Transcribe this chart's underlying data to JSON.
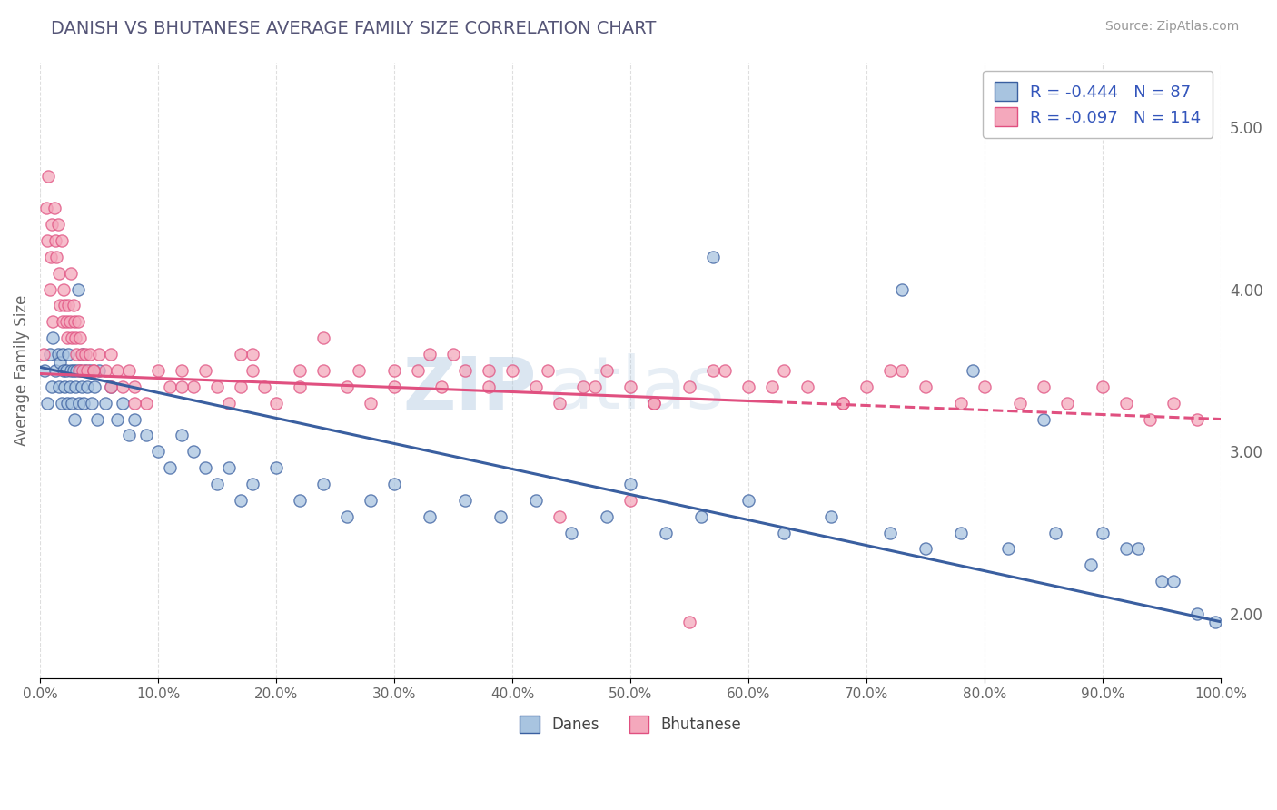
{
  "title": "DANISH VS BHUTANESE AVERAGE FAMILY SIZE CORRELATION CHART",
  "source": "Source: ZipAtlas.com",
  "ylabel": "Average Family Size",
  "legend_labels": [
    "Danes",
    "Bhutanese"
  ],
  "legend_R": [
    "-0.444",
    "-0.097"
  ],
  "legend_N": [
    "87",
    "114"
  ],
  "dane_color": "#a8c4e0",
  "bhutanese_color": "#f4a8bc",
  "dane_line_color": "#3a5fa0",
  "bhutanese_line_color": "#e05080",
  "background_color": "#ffffff",
  "grid_color": "#c8c8c8",
  "title_color": "#555577",
  "yticks_right": [
    2.0,
    3.0,
    4.0,
    5.0
  ],
  "ytick_labels_right": [
    "2.00",
    "3.00",
    "4.00",
    "5.00"
  ],
  "dane_line_x0": 0,
  "dane_line_x1": 100,
  "dane_line_y0": 3.52,
  "dane_line_y1": 1.95,
  "bhutanese_line_x0": 0,
  "bhutanese_line_x1": 100,
  "bhutanese_line_y0": 3.48,
  "bhutanese_line_y1": 3.2,
  "bhutanese_solid_end": 62,
  "watermark_zip": "ZIP",
  "watermark_atlas": "atlas",
  "xlim": [
    0,
    100
  ],
  "ylim": [
    1.6,
    5.4
  ],
  "dane_scatter_x": [
    0.4,
    0.6,
    0.8,
    1.0,
    1.1,
    1.3,
    1.5,
    1.6,
    1.7,
    1.8,
    1.9,
    2.0,
    2.1,
    2.2,
    2.3,
    2.4,
    2.5,
    2.6,
    2.7,
    2.8,
    2.9,
    3.0,
    3.1,
    3.2,
    3.3,
    3.4,
    3.5,
    3.6,
    3.7,
    3.8,
    4.0,
    4.2,
    4.4,
    4.6,
    4.8,
    5.0,
    5.5,
    6.0,
    6.5,
    7.0,
    7.5,
    8.0,
    9.0,
    10.0,
    11.0,
    12.0,
    13.0,
    14.0,
    15.0,
    16.0,
    17.0,
    18.0,
    20.0,
    22.0,
    24.0,
    26.0,
    28.0,
    30.0,
    33.0,
    36.0,
    39.0,
    42.0,
    45.0,
    48.0,
    50.0,
    53.0,
    56.0,
    60.0,
    63.0,
    67.0,
    72.0,
    75.0,
    78.0,
    82.0,
    86.0,
    89.0,
    92.0,
    95.0,
    98.0,
    99.5,
    57.0,
    73.0,
    79.0,
    85.0,
    90.0,
    93.0,
    96.0
  ],
  "dane_scatter_y": [
    3.5,
    3.3,
    3.6,
    3.4,
    3.7,
    3.5,
    3.6,
    3.4,
    3.55,
    3.3,
    3.6,
    3.5,
    3.4,
    3.5,
    3.3,
    3.6,
    3.4,
    3.5,
    3.3,
    3.5,
    3.2,
    3.4,
    3.5,
    4.0,
    3.3,
    3.5,
    3.4,
    3.6,
    3.3,
    3.5,
    3.4,
    3.5,
    3.3,
    3.4,
    3.2,
    3.5,
    3.3,
    3.4,
    3.2,
    3.3,
    3.1,
    3.2,
    3.1,
    3.0,
    2.9,
    3.1,
    3.0,
    2.9,
    2.8,
    2.9,
    2.7,
    2.8,
    2.9,
    2.7,
    2.8,
    2.6,
    2.7,
    2.8,
    2.6,
    2.7,
    2.6,
    2.7,
    2.5,
    2.6,
    2.8,
    2.5,
    2.6,
    2.7,
    2.5,
    2.6,
    2.5,
    2.4,
    2.5,
    2.4,
    2.5,
    2.3,
    2.4,
    2.2,
    2.0,
    1.95,
    4.2,
    4.0,
    3.5,
    3.2,
    2.5,
    2.4,
    2.2
  ],
  "bhutanese_scatter_x": [
    0.3,
    0.5,
    0.6,
    0.7,
    0.8,
    0.9,
    1.0,
    1.1,
    1.2,
    1.3,
    1.4,
    1.5,
    1.6,
    1.7,
    1.8,
    1.9,
    2.0,
    2.1,
    2.2,
    2.3,
    2.4,
    2.5,
    2.6,
    2.7,
    2.8,
    2.9,
    3.0,
    3.1,
    3.2,
    3.3,
    3.4,
    3.5,
    3.6,
    3.8,
    4.0,
    4.2,
    4.5,
    5.0,
    5.5,
    6.0,
    6.5,
    7.0,
    7.5,
    8.0,
    9.0,
    10.0,
    11.0,
    12.0,
    13.0,
    14.0,
    15.0,
    16.0,
    17.0,
    18.0,
    19.0,
    20.0,
    22.0,
    24.0,
    26.0,
    28.0,
    30.0,
    32.0,
    34.0,
    36.0,
    38.0,
    40.0,
    42.0,
    44.0,
    46.0,
    48.0,
    50.0,
    52.0,
    55.0,
    58.0,
    60.0,
    63.0,
    65.0,
    68.0,
    70.0,
    73.0,
    75.0,
    78.0,
    80.0,
    83.0,
    85.0,
    87.0,
    90.0,
    92.0,
    94.0,
    96.0,
    98.0,
    44.0,
    50.0,
    55.0,
    24.0,
    30.0,
    35.0,
    18.0,
    8.0,
    12.0,
    4.5,
    6.0,
    17.0,
    22.0,
    27.0,
    33.0,
    38.0,
    43.0,
    47.0,
    52.0,
    57.0,
    62.0,
    68.0,
    72.0
  ],
  "bhutanese_scatter_y": [
    3.6,
    4.5,
    4.3,
    4.7,
    4.0,
    4.2,
    4.4,
    3.8,
    4.5,
    4.3,
    4.2,
    4.4,
    4.1,
    3.9,
    4.3,
    3.8,
    4.0,
    3.9,
    3.8,
    3.7,
    3.9,
    3.8,
    4.1,
    3.7,
    3.9,
    3.8,
    3.7,
    3.6,
    3.8,
    3.5,
    3.7,
    3.6,
    3.5,
    3.6,
    3.5,
    3.6,
    3.5,
    3.6,
    3.5,
    3.6,
    3.5,
    3.4,
    3.5,
    3.4,
    3.3,
    3.5,
    3.4,
    3.5,
    3.4,
    3.5,
    3.4,
    3.3,
    3.4,
    3.5,
    3.4,
    3.3,
    3.4,
    3.5,
    3.4,
    3.3,
    3.4,
    3.5,
    3.4,
    3.5,
    3.4,
    3.5,
    3.4,
    3.3,
    3.4,
    3.5,
    3.4,
    3.3,
    3.4,
    3.5,
    3.4,
    3.5,
    3.4,
    3.3,
    3.4,
    3.5,
    3.4,
    3.3,
    3.4,
    3.3,
    3.4,
    3.3,
    3.4,
    3.3,
    3.2,
    3.3,
    3.2,
    2.6,
    2.7,
    1.95,
    3.7,
    3.5,
    3.6,
    3.6,
    3.3,
    3.4,
    3.5,
    3.4,
    3.6,
    3.5,
    3.5,
    3.6,
    3.5,
    3.5,
    3.4,
    3.3,
    3.5,
    3.4,
    3.3,
    3.5
  ]
}
